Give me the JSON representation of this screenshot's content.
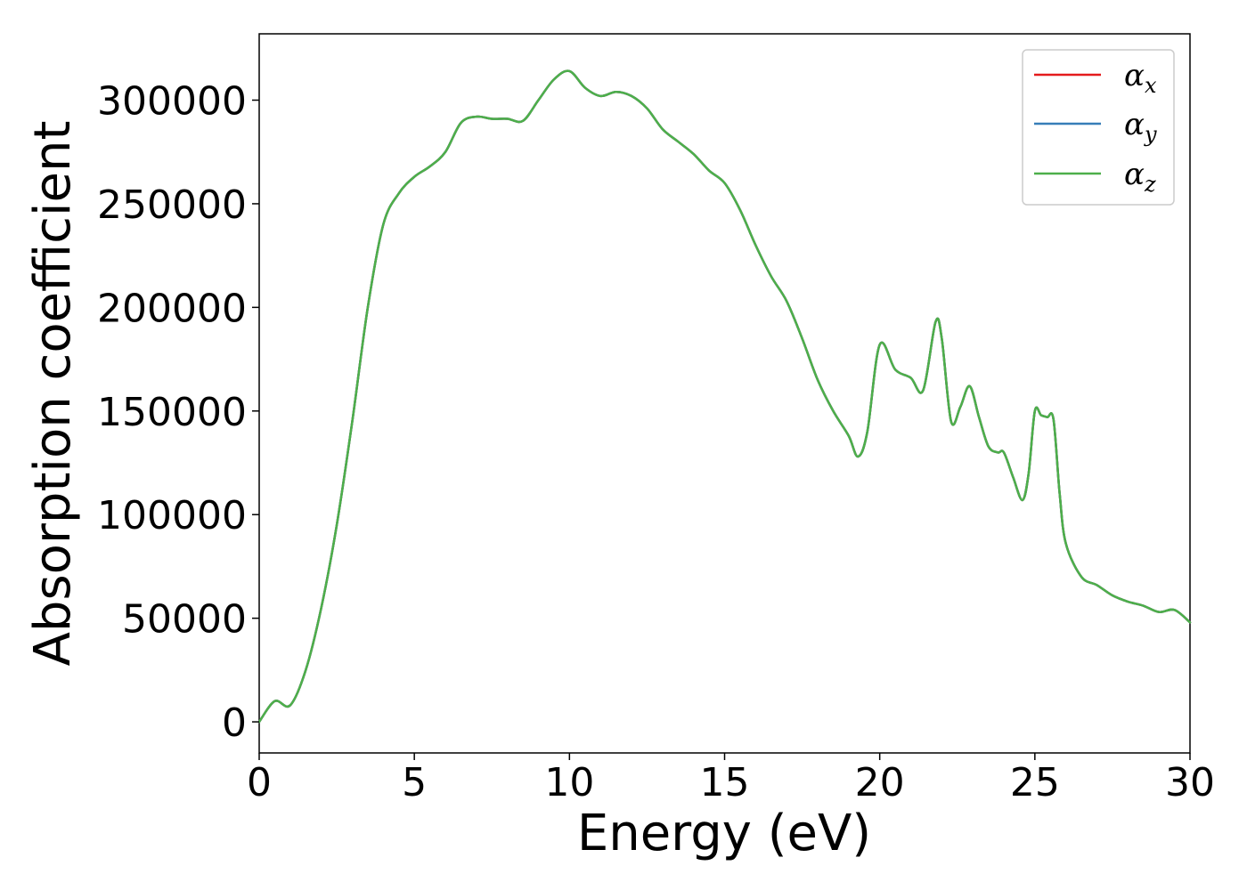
{
  "chart_data": {
    "type": "line",
    "title": "",
    "xlabel": "Energy (eV)",
    "ylabel": "Absorption coefficient",
    "xlim": [
      0,
      30
    ],
    "ylim": [
      -15000,
      332000
    ],
    "xticks": [
      0,
      5,
      10,
      15,
      20,
      25,
      30
    ],
    "xtick_labels": [
      "0",
      "5",
      "10",
      "15",
      "20",
      "25",
      "30"
    ],
    "yticks": [
      0,
      50000,
      100000,
      150000,
      200000,
      250000,
      300000
    ],
    "ytick_labels": [
      "0",
      "50000",
      "100000",
      "150000",
      "200000",
      "250000",
      "300000"
    ],
    "grid": false,
    "legend_position": "top-right",
    "x": [
      0,
      0.5,
      1.0,
      1.5,
      2.0,
      2.5,
      3.0,
      3.5,
      4.0,
      4.5,
      5.0,
      5.5,
      6.0,
      6.5,
      7.0,
      7.5,
      8.0,
      8.5,
      9.0,
      9.5,
      10.0,
      10.5,
      11.0,
      11.5,
      12.0,
      12.5,
      13.0,
      13.5,
      14.0,
      14.5,
      15.0,
      15.5,
      16.0,
      16.5,
      17.0,
      17.5,
      18.0,
      18.5,
      19.0,
      19.3,
      19.6,
      20.0,
      20.5,
      21.0,
      21.4,
      21.8,
      22.0,
      22.3,
      22.6,
      22.9,
      23.2,
      23.5,
      23.8,
      24.0,
      24.3,
      24.6,
      24.8,
      25.0,
      25.2,
      25.4,
      25.6,
      25.8,
      26.0,
      26.5,
      27.0,
      27.5,
      28.0,
      28.5,
      29.0,
      29.5,
      30.0
    ],
    "series": [
      {
        "name": "αx",
        "color": "#e41a1c",
        "values": [
          0,
          10000,
          8000,
          25000,
          55000,
          95000,
          145000,
          200000,
          240000,
          255000,
          263000,
          268000,
          275000,
          289000,
          292000,
          291000,
          291000,
          290000,
          300000,
          310000,
          314000,
          306000,
          302000,
          304000,
          302000,
          296000,
          286000,
          280000,
          274000,
          266000,
          260000,
          247000,
          230000,
          215000,
          203000,
          185000,
          165000,
          150000,
          138000,
          128000,
          140000,
          182000,
          170000,
          166000,
          160000,
          193000,
          185000,
          145000,
          152000,
          162000,
          147000,
          133000,
          130000,
          130000,
          118000,
          107000,
          120000,
          150000,
          148000,
          147000,
          146000,
          110000,
          86000,
          70000,
          66000,
          61000,
          58000,
          56000,
          53000,
          54000,
          48000
        ]
      },
      {
        "name": "αy",
        "color": "#377eb8",
        "values": [
          0,
          10000,
          8000,
          25000,
          55000,
          95000,
          145000,
          200000,
          240000,
          255000,
          263000,
          268000,
          275000,
          289000,
          292000,
          291000,
          291000,
          290000,
          300000,
          310000,
          314000,
          306000,
          302000,
          304000,
          302000,
          296000,
          286000,
          280000,
          274000,
          266000,
          260000,
          247000,
          230000,
          215000,
          203000,
          185000,
          165000,
          150000,
          138000,
          128000,
          140000,
          182000,
          170000,
          166000,
          160000,
          193000,
          185000,
          145000,
          152000,
          162000,
          147000,
          133000,
          130000,
          130000,
          118000,
          107000,
          120000,
          150000,
          148000,
          147000,
          146000,
          110000,
          86000,
          70000,
          66000,
          61000,
          58000,
          56000,
          53000,
          54000,
          48000
        ]
      },
      {
        "name": "αz",
        "color": "#4daf4a",
        "values": [
          0,
          10000,
          8000,
          25000,
          55000,
          95000,
          145000,
          200000,
          240000,
          255000,
          263000,
          268000,
          275000,
          289000,
          292000,
          291000,
          291000,
          290000,
          300000,
          310000,
          314000,
          306000,
          302000,
          304000,
          302000,
          296000,
          286000,
          280000,
          274000,
          266000,
          260000,
          247000,
          230000,
          215000,
          203000,
          185000,
          165000,
          150000,
          138000,
          128000,
          140000,
          182000,
          170000,
          166000,
          160000,
          193000,
          185000,
          145000,
          152000,
          162000,
          147000,
          133000,
          130000,
          130000,
          118000,
          107000,
          120000,
          150000,
          148000,
          147000,
          146000,
          110000,
          86000,
          70000,
          66000,
          61000,
          58000,
          56000,
          53000,
          54000,
          48000
        ]
      }
    ],
    "legend": [
      {
        "base": "α",
        "sub": "x"
      },
      {
        "base": "α",
        "sub": "y"
      },
      {
        "base": "α",
        "sub": "z"
      }
    ]
  }
}
